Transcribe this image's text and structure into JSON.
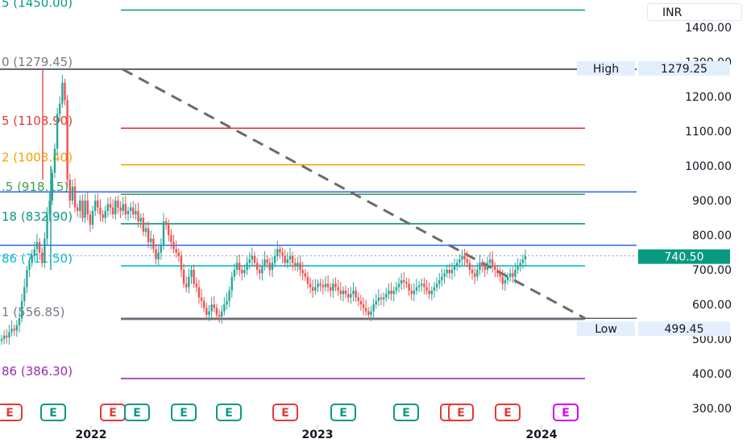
{
  "currency": "INR",
  "colors": {
    "up": "#26a69a",
    "down": "#ef5350",
    "dashed": "#6b6b6b",
    "blue_line": "#2962ff",
    "price_tag": "#089981"
  },
  "chart_data": {
    "type": "candlestick",
    "x_ticks": [
      "2022",
      "2023",
      "2024"
    ],
    "y_ticks": [
      "1400.00",
      "1300.00",
      "1200.00",
      "1100.00",
      "1000.00",
      "900.00",
      "800.00",
      "700.00",
      "600.00",
      "500.00",
      "400.00",
      "300.00"
    ],
    "ylim": [
      270,
      1470
    ],
    "last_price": "740.50",
    "high_label": "High",
    "high_value": "1279.25",
    "low_label": "Low",
    "low_value": "499.45",
    "fib_levels": [
      {
        "label": "5 (1450.00)",
        "price": 1450.0,
        "color": "#089981"
      },
      {
        "label": "0 (1279.45)",
        "price": 1279.45,
        "color": "#787b86"
      },
      {
        "label": "5 (1108.90)",
        "price": 1108.9,
        "color": "#e53935"
      },
      {
        "label": "2 (1003.40)",
        "price": 1003.4,
        "color": "#f5a100"
      },
      {
        "label": ".5 (918.15)",
        "price": 918.15,
        "color": "#43a047"
      },
      {
        "label": "18 (832.90)",
        "price": 832.9,
        "color": "#089981"
      },
      {
        "label": "86 (711.50)",
        "price": 711.5,
        "color": "#00bcd4"
      },
      {
        "label": "1 (556.85)",
        "price": 556.85,
        "color": "#787b86"
      },
      {
        "label": "86 (386.30)",
        "price": 386.3,
        "color": "#9c27b0"
      }
    ],
    "horizontal_lines": [
      925,
      771
    ],
    "trendline": {
      "from": [
        "2022-01",
        1279.25
      ],
      "to": [
        "2024-01",
        556
      ]
    },
    "candles_close": [
      500,
      510,
      505,
      520,
      530,
      525,
      540,
      560,
      610,
      650,
      700,
      720,
      740,
      760,
      780,
      750,
      720,
      790,
      860,
      900,
      980,
      1050,
      1150,
      1180,
      1240,
      1190,
      960,
      900,
      940,
      880,
      870,
      900,
      850,
      900,
      860,
      830,
      870,
      900,
      880,
      860,
      850,
      870,
      890,
      880,
      860,
      900,
      880,
      870,
      890,
      860,
      870,
      880,
      860,
      870,
      840,
      850,
      810,
      820,
      780,
      790,
      760,
      730,
      750,
      770,
      840,
      830,
      800,
      780,
      760,
      750,
      740,
      700,
      660,
      650,
      680,
      700,
      660,
      650,
      620,
      610,
      590,
      570,
      580,
      600,
      590,
      570,
      565,
      580,
      600,
      610,
      640,
      680,
      700,
      720,
      700,
      690,
      700,
      720,
      730,
      740,
      720,
      700,
      690,
      710,
      730,
      720,
      700,
      720,
      740,
      760,
      750,
      740,
      720,
      730,
      740,
      720,
      710,
      720,
      700,
      690,
      680,
      660,
      650,
      640,
      650,
      660,
      655,
      650,
      660,
      650,
      640,
      660,
      650,
      640,
      630,
      640,
      630,
      620,
      630,
      640,
      620,
      610,
      600,
      590,
      580,
      570,
      580,
      600,
      610,
      620,
      615,
      620,
      630,
      640,
      630,
      640,
      650,
      660,
      670,
      665,
      660,
      640,
      630,
      640,
      650,
      655,
      660,
      650,
      640,
      630,
      640,
      650,
      660,
      670,
      680,
      690,
      700,
      690,
      700,
      710,
      720,
      730,
      740,
      730,
      720,
      700,
      690,
      680,
      700,
      720,
      710,
      700,
      720,
      730,
      710,
      700,
      690,
      680,
      660,
      670,
      680,
      690,
      680,
      700,
      710,
      720,
      730,
      740
    ]
  }
}
